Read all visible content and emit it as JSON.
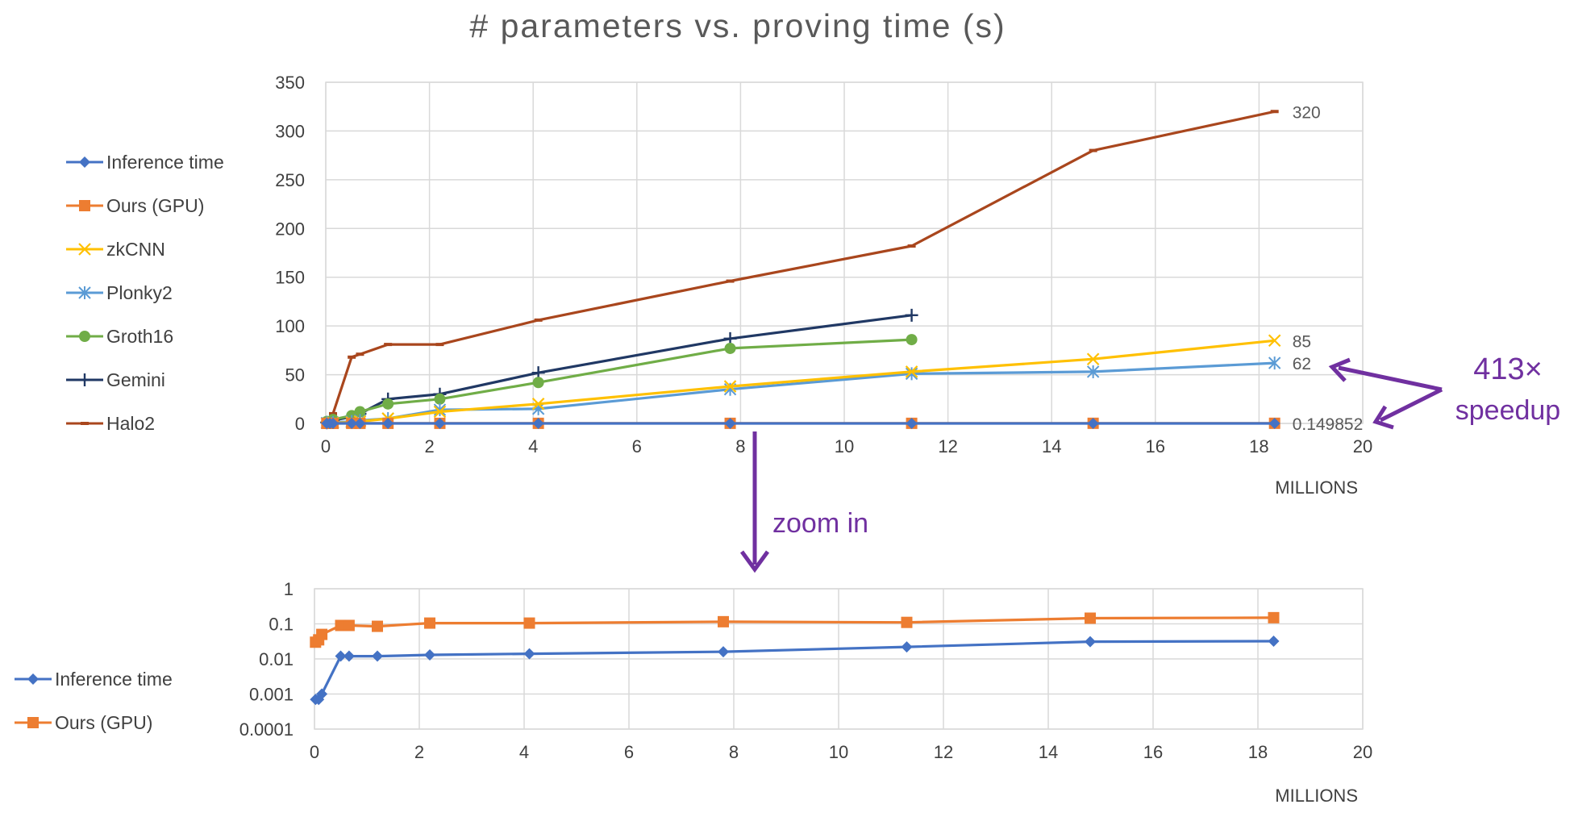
{
  "chart_data": [
    {
      "type": "line",
      "title": "# parameters vs. proving time (s)",
      "xlabel": "",
      "ylabel": "",
      "x_unit_label": "MILLIONS",
      "xlim": [
        0,
        20
      ],
      "ylim": [
        0,
        350
      ],
      "xticks": [
        0,
        2,
        4,
        6,
        8,
        10,
        12,
        14,
        16,
        18,
        20
      ],
      "yticks": [
        0,
        50,
        100,
        150,
        200,
        250,
        300,
        350
      ],
      "grid": true,
      "legend_position": "left",
      "series": [
        {
          "name": "Inference time",
          "color": "#4472C4",
          "marker": "diamond",
          "x": [
            0.02,
            0.08,
            0.14,
            0.5,
            0.66,
            1.2,
            2.2,
            4.1,
            7.8,
            11.3,
            14.8,
            18.3
          ],
          "y": [
            0.0007,
            0.0007,
            0.001,
            0.012,
            0.012,
            0.012,
            0.013,
            0.014,
            0.016,
            0.022,
            0.031,
            0.032
          ]
        },
        {
          "name": "Ours (GPU)",
          "color": "#ED7D31",
          "marker": "square",
          "x": [
            0.02,
            0.08,
            0.14,
            0.5,
            0.66,
            1.2,
            2.2,
            4.1,
            7.8,
            11.3,
            14.8,
            18.3
          ],
          "y": [
            0.03,
            0.035,
            0.05,
            0.09,
            0.09,
            0.085,
            0.105,
            0.105,
            0.115,
            0.11,
            0.145,
            0.149852
          ]
        },
        {
          "name": "zkCNN",
          "color": "#FFC000",
          "marker": "x",
          "x": [
            0.14,
            0.5,
            0.66,
            1.2,
            2.2,
            4.1,
            7.8,
            11.3,
            14.8,
            18.3
          ],
          "y": [
            0.5,
            1,
            2,
            5,
            12,
            20,
            38,
            53,
            66,
            85
          ]
        },
        {
          "name": "Plonky2",
          "color": "#5B9BD5",
          "marker": "asterisk",
          "x": [
            0.02,
            0.14,
            0.5,
            0.66,
            1.2,
            2.2,
            4.1,
            7.8,
            11.3,
            14.8,
            18.3
          ],
          "y": [
            0.5,
            1,
            2,
            3,
            5,
            14,
            15,
            35,
            51,
            53,
            62
          ]
        },
        {
          "name": "Groth16",
          "color": "#70AD47",
          "marker": "circle",
          "x": [
            0.02,
            0.14,
            0.5,
            0.66,
            1.2,
            2.2,
            4.1,
            7.8,
            11.3
          ],
          "y": [
            2,
            4,
            8,
            12,
            20,
            25,
            42,
            77,
            86
          ]
        },
        {
          "name": "Gemini",
          "color": "#203864",
          "marker": "plus",
          "x": [
            0.02,
            0.14,
            0.5,
            0.66,
            1.2,
            2.2,
            4.1,
            7.8,
            11.3
          ],
          "y": [
            1,
            3,
            7,
            10,
            25,
            30,
            52,
            87,
            111
          ]
        },
        {
          "name": "Halo2",
          "color": "#A9461D",
          "marker": "dash",
          "x": [
            0.02,
            0.14,
            0.5,
            0.66,
            1.2,
            2.2,
            4.1,
            7.8,
            11.3,
            14.8,
            18.3
          ],
          "y": [
            3,
            10,
            68,
            71,
            81,
            81,
            106,
            146,
            182,
            280,
            320
          ]
        }
      ],
      "data_labels": [
        {
          "series": "Halo2",
          "text": "320"
        },
        {
          "series": "zkCNN",
          "text": "85"
        },
        {
          "series": "Plonky2",
          "text": "62"
        },
        {
          "series": "Ours (GPU)",
          "text": "0.149852"
        }
      ]
    },
    {
      "type": "line",
      "title": "",
      "xlabel": "",
      "ylabel": "",
      "x_unit_label": "MILLIONS",
      "y_scale": "log",
      "xlim": [
        0,
        20
      ],
      "ylim": [
        0.0001,
        1
      ],
      "xticks": [
        0,
        2,
        4,
        6,
        8,
        10,
        12,
        14,
        16,
        18,
        20
      ],
      "yticks": [
        "1",
        "0.1",
        "0.01",
        "0.001",
        "0.0001"
      ],
      "grid": true,
      "legend_position": "left",
      "series": [
        {
          "name": "Inference time",
          "color": "#4472C4",
          "marker": "diamond",
          "x": [
            0.02,
            0.08,
            0.14,
            0.5,
            0.66,
            1.2,
            2.2,
            4.1,
            7.8,
            11.3,
            14.8,
            18.3
          ],
          "y": [
            0.0007,
            0.0007,
            0.001,
            0.012,
            0.012,
            0.012,
            0.013,
            0.014,
            0.016,
            0.022,
            0.031,
            0.032
          ]
        },
        {
          "name": "Ours (GPU)",
          "color": "#ED7D31",
          "marker": "square",
          "x": [
            0.02,
            0.08,
            0.14,
            0.5,
            0.66,
            1.2,
            2.2,
            4.1,
            7.8,
            11.3,
            14.8,
            18.3
          ],
          "y": [
            0.03,
            0.035,
            0.05,
            0.09,
            0.09,
            0.085,
            0.105,
            0.105,
            0.115,
            0.11,
            0.145,
            0.149852
          ]
        }
      ]
    }
  ],
  "annotations": {
    "zoom_text": "zoom in",
    "speedup_value": "413×",
    "speedup_word": "speedup",
    "color": "#7030A0"
  }
}
